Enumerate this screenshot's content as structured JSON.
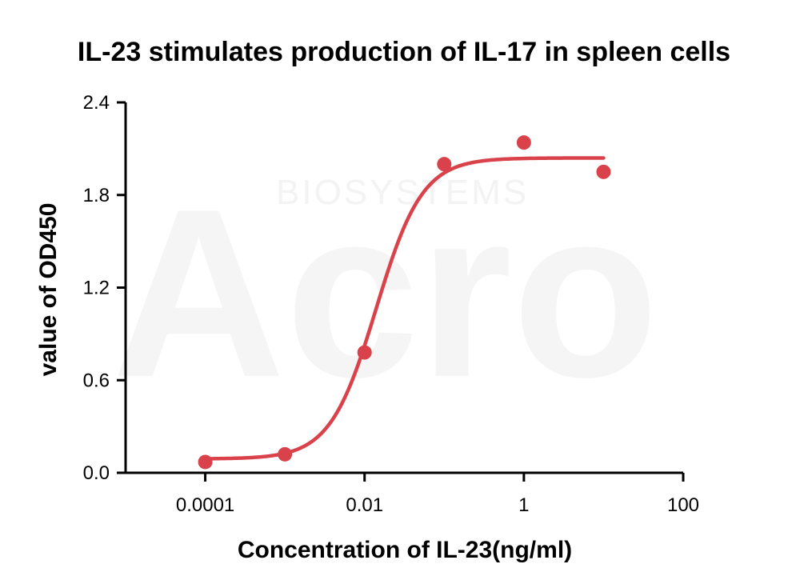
{
  "chart_data": {
    "type": "scatter",
    "title": "IL-23 stimulates production of IL-17 in spleen cells",
    "xlabel": "Concentration of IL-23(ng/ml)",
    "ylabel": "value of OD450",
    "x_scale": "log",
    "xlim": [
      1e-05,
      100
    ],
    "ylim": [
      0,
      2.4
    ],
    "x_ticks": [
      {
        "value": 0.0001,
        "label": "0.0001"
      },
      {
        "value": 0.01,
        "label": "0.01"
      },
      {
        "value": 1,
        "label": "1"
      },
      {
        "value": 100,
        "label": "100"
      }
    ],
    "y_ticks": [
      {
        "value": 0.0,
        "label": "0.0"
      },
      {
        "value": 0.6,
        "label": "0.6"
      },
      {
        "value": 1.2,
        "label": "1.2"
      },
      {
        "value": 1.8,
        "label": "1.8"
      },
      {
        "value": 2.4,
        "label": "2.4"
      }
    ],
    "series": [
      {
        "x": [
          0.0001,
          0.001,
          0.01,
          0.1,
          1,
          10
        ],
        "y": [
          0.07,
          0.12,
          0.78,
          2.0,
          2.14,
          1.95
        ]
      }
    ],
    "fit_curve": {
      "type": "4PL",
      "bottom": 0.09,
      "top": 2.04,
      "ec50": 0.014,
      "hill": 1.5
    },
    "color": "#d9424a",
    "grid": false,
    "legend": "none",
    "watermark_logo": "Acro",
    "watermark_text": "BIOSYSTEMS"
  }
}
